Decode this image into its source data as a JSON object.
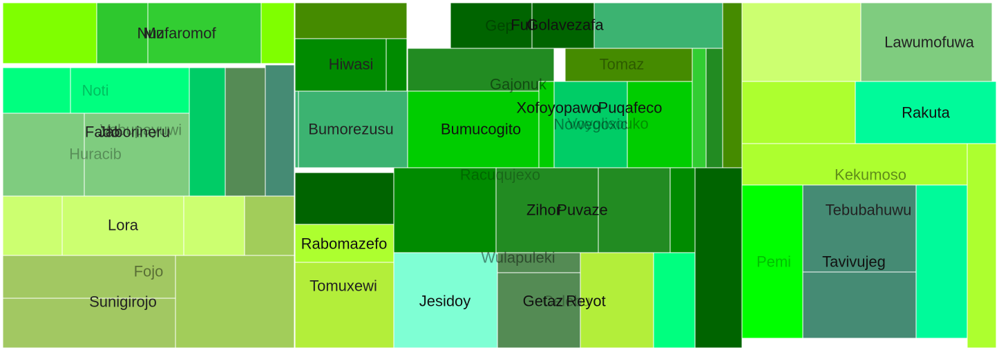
{
  "chart_data": {
    "type": "treemap",
    "title": "",
    "groups": [
      {
        "cells": [
          {
            "label": "",
            "color": "#7fff00"
          },
          {
            "label": "Nuz",
            "color": "#2ec82e"
          },
          {
            "label": "Mufaromof",
            "color": "#32cd32"
          },
          {
            "label": "",
            "color": "#7fff00"
          },
          {
            "label": "Noti",
            "color": "#00ff7f"
          },
          {
            "label": "",
            "color": "#00ff7f"
          },
          {
            "label": "Vabupayuwi",
            "color": "#7fcc7f"
          },
          {
            "label": "Jaborineru",
            "color": "#7fcc7f"
          },
          {
            "label": "Huracib",
            "color": "#7fcc7f"
          },
          {
            "label": "Fado",
            "color": "#7fcc7f"
          },
          {
            "label": "",
            "color": "#00cc66"
          },
          {
            "label": "",
            "color": "#558b55"
          },
          {
            "label": "",
            "color": "#458b74"
          },
          {
            "label": "",
            "color": "#ccff70"
          },
          {
            "label": "Lora",
            "color": "#ccff70"
          },
          {
            "label": "",
            "color": "#ccff70"
          },
          {
            "label": "",
            "color": "#a2cd5a"
          },
          {
            "label": "Fojo",
            "color": "#a2c862"
          },
          {
            "label": "Sunigirojo",
            "color": "#a2c862"
          },
          {
            "label": "",
            "color": "#a2cd5a"
          }
        ]
      },
      {
        "cells": [
          {
            "label": "",
            "color": "#458b00"
          },
          {
            "label": "Hiwasi",
            "color": "#008b00"
          },
          {
            "label": "",
            "color": "#008b00"
          },
          {
            "label": "Bumorezusu",
            "color": "#3cb371"
          },
          {
            "label": "",
            "color": "#3cb371"
          },
          {
            "label": "Gep",
            "color": "#006400"
          },
          {
            "label": "Fuli",
            "color": "#006400"
          },
          {
            "label": "Golavezafa",
            "color": "#006400"
          },
          {
            "label": "",
            "color": "#3cb371"
          },
          {
            "label": "",
            "color": "#458b00"
          },
          {
            "label": "Gajonuk",
            "color": "#228b22"
          },
          {
            "label": "Tomaz",
            "color": "#458b00"
          },
          {
            "label": "",
            "color": "#32cd32"
          },
          {
            "label": "",
            "color": "#228b22"
          },
          {
            "label": "Bumucogito",
            "color": "#00cd00"
          },
          {
            "label": "Xofoyopawo",
            "color": "#00cd00"
          },
          {
            "label": "Nowegoxic",
            "color": "#00cd66"
          },
          {
            "label": "Voyolisouko",
            "color": "#00cd00"
          },
          {
            "label": "Puqafeco",
            "color": "#00cd00"
          },
          {
            "label": "Racuqujexo",
            "color": "#008b00"
          },
          {
            "label": "",
            "color": "#006400"
          },
          {
            "label": "Rabomazefo",
            "color": "#adff2f"
          },
          {
            "label": "Tomuxewi",
            "color": "#b3ee3a"
          },
          {
            "label": "Zihor",
            "color": "#228b22"
          },
          {
            "label": "Puvaze",
            "color": "#228b22"
          },
          {
            "label": "",
            "color": "#008b00"
          },
          {
            "label": "",
            "color": "#006400"
          },
          {
            "label": "Wulapuleki",
            "color": "#548b54"
          },
          {
            "label": "Jesidoy",
            "color": "#7fffd4"
          },
          {
            "label": "Getaz",
            "color": "#548b54"
          },
          {
            "label": "Celebu",
            "color": "#548b54"
          },
          {
            "label": "Reyot",
            "color": "#b3ee3a"
          },
          {
            "label": "",
            "color": "#00ff7f"
          }
        ]
      },
      {
        "cells": [
          {
            "label": "",
            "color": "#ccff70"
          },
          {
            "label": "Lawumofuwa",
            "color": "#7fcc7f"
          },
          {
            "label": "",
            "color": "#adff2f"
          },
          {
            "label": "Rakuta",
            "color": "#00fa9a"
          },
          {
            "label": "Kekumoso",
            "color": "#adff2f"
          },
          {
            "label": "Pemi",
            "color": "#00ff00"
          },
          {
            "label": "Tebubahuwu",
            "color": "#458b74"
          },
          {
            "label": "Tavivujeg",
            "color": "#458b74"
          },
          {
            "label": "",
            "color": "#00fa9a"
          },
          {
            "label": "",
            "color": "#adff2f"
          }
        ]
      }
    ]
  }
}
